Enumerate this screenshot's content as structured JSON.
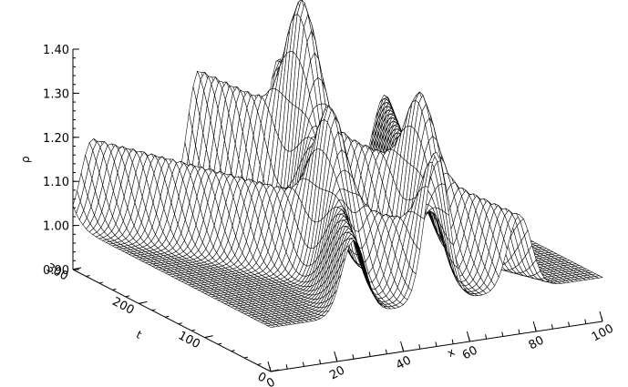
{
  "chart_data": {
    "type": "surface",
    "title": "",
    "xlabel": "x",
    "ylabel": "t",
    "zlabel": "ρ",
    "xlim": [
      0,
      100
    ],
    "ylim": [
      0,
      300
    ],
    "zlim": [
      0.9,
      1.4
    ],
    "x_ticks": [
      "0",
      "20",
      "40",
      "60",
      "80",
      "100"
    ],
    "y_ticks": [
      "0",
      "100",
      "200",
      "300"
    ],
    "z_ticks": [
      "0.90",
      "1.00",
      "1.10",
      "1.20",
      "1.30",
      "1.40"
    ],
    "baseline": 1.0,
    "grid": false,
    "legend": "none",
    "features": [
      {
        "t_start": 0,
        "t_end": 300,
        "x_start": 50,
        "x_end": 6,
        "peak_start": 1.17,
        "peak_end": 1.19,
        "width": 5
      },
      {
        "t_start": 0,
        "t_end": 300,
        "x_start": 50,
        "x_end": 94,
        "peak_start": 1.17,
        "peak_end": 1.19,
        "width": 5
      },
      {
        "t_start": 0,
        "t_end": 300,
        "x_start": 25,
        "x_end": 62,
        "peak_start": 1.17,
        "peak_end": 1.31,
        "width": 5
      },
      {
        "t_start": 0,
        "t_end": 300,
        "x_start": 75,
        "x_end": 38,
        "peak_start": 1.17,
        "peak_end": 1.31,
        "width": 5
      }
    ]
  }
}
